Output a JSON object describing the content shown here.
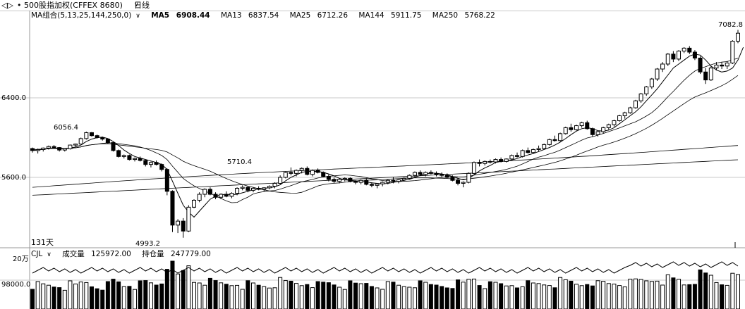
{
  "header": {
    "back_glyph": "◁▷",
    "title": "• 500股指加权(CFFEX 8680)",
    "period": "日线",
    "chevron": "∨"
  },
  "ma": {
    "label": "MA组合(5,13,25,144,250,0)",
    "items": [
      {
        "name": "MA5",
        "value": "6908.44",
        "bold": true
      },
      {
        "name": "MA13",
        "value": "6837.54"
      },
      {
        "name": "MA25",
        "value": "6712.26"
      },
      {
        "name": "MA144",
        "value": "5911.75"
      },
      {
        "name": "MA250",
        "value": "5768.22"
      }
    ]
  },
  "price_axis": {
    "labels": [
      "6400.0",
      "5600.0"
    ]
  },
  "annotations": {
    "high": "7082.8",
    "left_high": "6056.4",
    "mid_high": "5710.4",
    "low": "4993.2",
    "count": "131天"
  },
  "volume": {
    "indicator": "CJL",
    "volume_label": "成交量",
    "volume_value": "125972.00",
    "oi_label": "持仓量",
    "oi_value": "247779.00",
    "axis": [
      "20万",
      "98000.0"
    ]
  },
  "colors": {
    "up": "#ffffff",
    "down": "#000000",
    "grid": "#c8c8c8",
    "line": "#000000"
  },
  "chart_data": {
    "type": "candlestick",
    "price_range": [
      4950,
      7120
    ],
    "candles": [
      [
        5890,
        5900,
        5850,
        5870
      ],
      [
        5870,
        5890,
        5840,
        5880
      ],
      [
        5880,
        5900,
        5860,
        5895
      ],
      [
        5895,
        5920,
        5880,
        5910
      ],
      [
        5910,
        5925,
        5890,
        5900
      ],
      [
        5900,
        5905,
        5860,
        5875
      ],
      [
        5875,
        5890,
        5860,
        5888
      ],
      [
        5888,
        5930,
        5880,
        5925
      ],
      [
        5925,
        5940,
        5910,
        5935
      ],
      [
        5935,
        6000,
        5930,
        5990
      ],
      [
        5990,
        6060,
        5980,
        6050
      ],
      [
        6050,
        6056,
        6010,
        6020
      ],
      [
        6020,
        6030,
        5990,
        6000
      ],
      [
        6000,
        6010,
        5970,
        5985
      ],
      [
        5985,
        5990,
        5940,
        5950
      ],
      [
        5950,
        5955,
        5860,
        5870
      ],
      [
        5870,
        5880,
        5800,
        5810
      ],
      [
        5810,
        5830,
        5790,
        5820
      ],
      [
        5820,
        5830,
        5770,
        5780
      ],
      [
        5780,
        5800,
        5760,
        5790
      ],
      [
        5790,
        5810,
        5760,
        5770
      ],
      [
        5770,
        5780,
        5710,
        5730
      ],
      [
        5730,
        5760,
        5700,
        5750
      ],
      [
        5750,
        5770,
        5720,
        5730
      ],
      [
        5730,
        5740,
        5660,
        5680
      ],
      [
        5680,
        5690,
        5420,
        5460
      ],
      [
        5460,
        5470,
        5050,
        5120
      ],
      [
        5120,
        5180,
        5040,
        5160
      ],
      [
        5160,
        5190,
        4993,
        5060
      ],
      [
        5060,
        5320,
        5050,
        5300
      ],
      [
        5300,
        5380,
        5290,
        5370
      ],
      [
        5370,
        5450,
        5350,
        5430
      ],
      [
        5430,
        5490,
        5400,
        5480
      ],
      [
        5480,
        5500,
        5420,
        5430
      ],
      [
        5430,
        5450,
        5380,
        5400
      ],
      [
        5400,
        5440,
        5380,
        5430
      ],
      [
        5430,
        5460,
        5400,
        5410
      ],
      [
        5410,
        5450,
        5390,
        5440
      ],
      [
        5440,
        5500,
        5420,
        5490
      ],
      [
        5490,
        5520,
        5470,
        5500
      ],
      [
        5500,
        5510,
        5450,
        5470
      ],
      [
        5470,
        5500,
        5450,
        5490
      ],
      [
        5490,
        5510,
        5470,
        5480
      ],
      [
        5480,
        5500,
        5460,
        5495
      ],
      [
        5495,
        5520,
        5480,
        5510
      ],
      [
        5510,
        5550,
        5490,
        5540
      ],
      [
        5540,
        5620,
        5530,
        5600
      ],
      [
        5600,
        5660,
        5590,
        5650
      ],
      [
        5650,
        5700,
        5620,
        5640
      ],
      [
        5640,
        5680,
        5610,
        5670
      ],
      [
        5670,
        5700,
        5640,
        5690
      ],
      [
        5690,
        5710,
        5620,
        5630
      ],
      [
        5630,
        5680,
        5610,
        5670
      ],
      [
        5670,
        5690,
        5640,
        5650
      ],
      [
        5650,
        5660,
        5600,
        5610
      ],
      [
        5610,
        5630,
        5560,
        5580
      ],
      [
        5580,
        5600,
        5540,
        5560
      ],
      [
        5560,
        5590,
        5540,
        5580
      ],
      [
        5580,
        5600,
        5560,
        5590
      ],
      [
        5590,
        5600,
        5550,
        5560
      ],
      [
        5560,
        5570,
        5530,
        5550
      ],
      [
        5550,
        5580,
        5530,
        5570
      ],
      [
        5570,
        5590,
        5520,
        5530
      ],
      [
        5530,
        5550,
        5500,
        5520
      ],
      [
        5520,
        5540,
        5490,
        5535
      ],
      [
        5535,
        5560,
        5510,
        5550
      ],
      [
        5550,
        5580,
        5530,
        5570
      ],
      [
        5570,
        5600,
        5540,
        5560
      ],
      [
        5560,
        5580,
        5540,
        5575
      ],
      [
        5575,
        5600,
        5560,
        5590
      ],
      [
        5590,
        5630,
        5580,
        5620
      ],
      [
        5620,
        5660,
        5600,
        5650
      ],
      [
        5650,
        5670,
        5620,
        5630
      ],
      [
        5630,
        5660,
        5610,
        5650
      ],
      [
        5650,
        5670,
        5630,
        5640
      ],
      [
        5640,
        5660,
        5610,
        5630
      ],
      [
        5630,
        5650,
        5600,
        5620
      ],
      [
        5620,
        5640,
        5590,
        5600
      ],
      [
        5600,
        5620,
        5560,
        5570
      ],
      [
        5570,
        5590,
        5520,
        5540
      ],
      [
        5540,
        5560,
        5500,
        5550
      ],
      [
        5550,
        5650,
        5540,
        5640
      ],
      [
        5640,
        5760,
        5630,
        5750
      ],
      [
        5750,
        5780,
        5710,
        5740
      ],
      [
        5740,
        5770,
        5720,
        5760
      ],
      [
        5760,
        5780,
        5740,
        5755
      ],
      [
        5755,
        5790,
        5740,
        5780
      ],
      [
        5780,
        5800,
        5750,
        5760
      ],
      [
        5760,
        5790,
        5750,
        5785
      ],
      [
        5785,
        5830,
        5770,
        5820
      ],
      [
        5820,
        5850,
        5800,
        5810
      ],
      [
        5810,
        5880,
        5800,
        5870
      ],
      [
        5870,
        5900,
        5840,
        5850
      ],
      [
        5850,
        5890,
        5840,
        5880
      ],
      [
        5880,
        5920,
        5860,
        5890
      ],
      [
        5890,
        5940,
        5880,
        5930
      ],
      [
        5930,
        5990,
        5920,
        5980
      ],
      [
        5980,
        6020,
        5960,
        5970
      ],
      [
        5970,
        6050,
        5960,
        6040
      ],
      [
        6040,
        6110,
        6030,
        6100
      ],
      [
        6100,
        6140,
        6060,
        6080
      ],
      [
        6080,
        6130,
        6070,
        6120
      ],
      [
        6120,
        6160,
        6100,
        6150
      ],
      [
        6150,
        6170,
        6080,
        6090
      ],
      [
        6090,
        6100,
        6010,
        6030
      ],
      [
        6030,
        6070,
        6010,
        6060
      ],
      [
        6060,
        6110,
        6040,
        6100
      ],
      [
        6100,
        6140,
        6080,
        6130
      ],
      [
        6130,
        6180,
        6110,
        6170
      ],
      [
        6170,
        6230,
        6160,
        6220
      ],
      [
        6220,
        6260,
        6190,
        6250
      ],
      [
        6250,
        6310,
        6240,
        6300
      ],
      [
        6300,
        6380,
        6290,
        6370
      ],
      [
        6370,
        6450,
        6350,
        6440
      ],
      [
        6440,
        6520,
        6420,
        6510
      ],
      [
        6510,
        6600,
        6490,
        6590
      ],
      [
        6590,
        6700,
        6570,
        6690
      ],
      [
        6690,
        6760,
        6660,
        6740
      ],
      [
        6740,
        6850,
        6720,
        6840
      ],
      [
        6840,
        6870,
        6760,
        6790
      ],
      [
        6790,
        6880,
        6770,
        6870
      ],
      [
        6870,
        6910,
        6850,
        6900
      ],
      [
        6900,
        6920,
        6840,
        6860
      ],
      [
        6860,
        6880,
        6780,
        6800
      ],
      [
        6800,
        6820,
        6640,
        6660
      ],
      [
        6660,
        6700,
        6540,
        6580
      ],
      [
        6580,
        6720,
        6570,
        6700
      ],
      [
        6700,
        6760,
        6680,
        6730
      ],
      [
        6730,
        6760,
        6690,
        6720
      ],
      [
        6720,
        6770,
        6690,
        6750
      ],
      [
        6750,
        6980,
        6740,
        6970
      ],
      [
        6970,
        7082.8,
        6950,
        7050
      ]
    ],
    "ma5": [
      5880,
      5882,
      5885,
      5890,
      5895,
      5893,
      5890,
      5895,
      5905,
      5925,
      5960,
      5985,
      6000,
      6005,
      5990,
      5960,
      5920,
      5875,
      5840,
      5810,
      5795,
      5780,
      5765,
      5750,
      5730,
      5680,
      5560,
      5440,
      5320,
      5250,
      5200,
      5260,
      5320,
      5380,
      5410,
      5425,
      5430,
      5425,
      5430,
      5445,
      5460,
      5475,
      5485,
      5490,
      5495,
      5505,
      5525,
      5565,
      5600,
      5625,
      5650,
      5660,
      5660,
      5660,
      5650,
      5635,
      5615,
      5590,
      5575,
      5570,
      5565,
      5560,
      5555,
      5545,
      5540,
      5535,
      5540,
      5550,
      5560,
      5570,
      5580,
      5600,
      5620,
      5635,
      5645,
      5640,
      5635,
      5625,
      5610,
      5590,
      5575,
      5590,
      5625,
      5665,
      5695,
      5720,
      5750,
      5760,
      5765,
      5775,
      5790,
      5810,
      5825,
      5840,
      5860,
      5880,
      5900,
      5925,
      5955,
      5990,
      6030,
      6065,
      6090,
      6100,
      6090,
      6070,
      6065,
      6075,
      6100,
      6140,
      6180,
      6220,
      6260,
      6310,
      6370,
      6430,
      6490,
      6560,
      6630,
      6700,
      6740,
      6780,
      6820,
      6840,
      6830,
      6780,
      6720,
      6680,
      6660,
      6670,
      6700,
      6780,
      6908
    ]
  }
}
